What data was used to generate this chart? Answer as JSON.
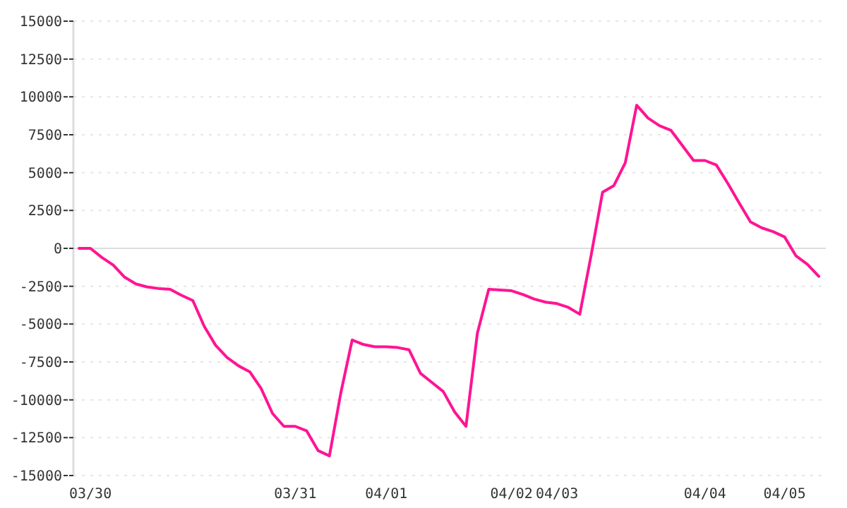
{
  "chart_data": {
    "type": "line",
    "categories": [
      null,
      "03/30",
      null,
      null,
      null,
      null,
      null,
      null,
      null,
      null,
      null,
      null,
      null,
      null,
      null,
      null,
      null,
      null,
      null,
      "03/31",
      null,
      null,
      null,
      null,
      null,
      null,
      null,
      "04/01",
      null,
      null,
      null,
      null,
      null,
      null,
      null,
      null,
      null,
      null,
      "04/02",
      null,
      null,
      null,
      "04/03",
      null,
      null,
      null,
      null,
      null,
      null,
      null,
      null,
      null,
      null,
      null,
      null,
      "04/04",
      null,
      null,
      null,
      null,
      null,
      null,
      "04/05",
      null,
      null,
      null
    ],
    "series": [
      {
        "color": "#ff1493",
        "values": [
          0,
          0,
          -600,
          -1100,
          -1900,
          -2350,
          -2550,
          -2650,
          -2700,
          -3100,
          -3450,
          -5150,
          -6400,
          -7200,
          -7750,
          -8150,
          -9250,
          -10900,
          -11750,
          -11750,
          -12050,
          -13350,
          -13700,
          -9550,
          -6050,
          -6350,
          -6500,
          -6500,
          -6550,
          -6700,
          -8250,
          -8850,
          -9450,
          -10800,
          -11750,
          -5600,
          -2700,
          -2750,
          -2800,
          -3050,
          -3350,
          -3550,
          -3650,
          -3900,
          -4350,
          -450,
          3700,
          4150,
          5650,
          9450,
          8600,
          8100,
          7800,
          6800,
          5800,
          5800,
          5500,
          4300,
          3000,
          1750,
          1350,
          1100,
          750,
          -500,
          -1050,
          -1850
        ]
      }
    ],
    "ylim": [
      -15000,
      15000
    ],
    "yticks": [
      -15000,
      -12500,
      -10000,
      -7500,
      -5000,
      -2500,
      0,
      2500,
      5000,
      7500,
      10000,
      12500,
      15000
    ],
    "grid": "y",
    "ref_lines": [
      {
        "axis": "y",
        "value": 0,
        "color": "#dddddd"
      }
    ],
    "line_style": "solid",
    "marker": "none"
  }
}
